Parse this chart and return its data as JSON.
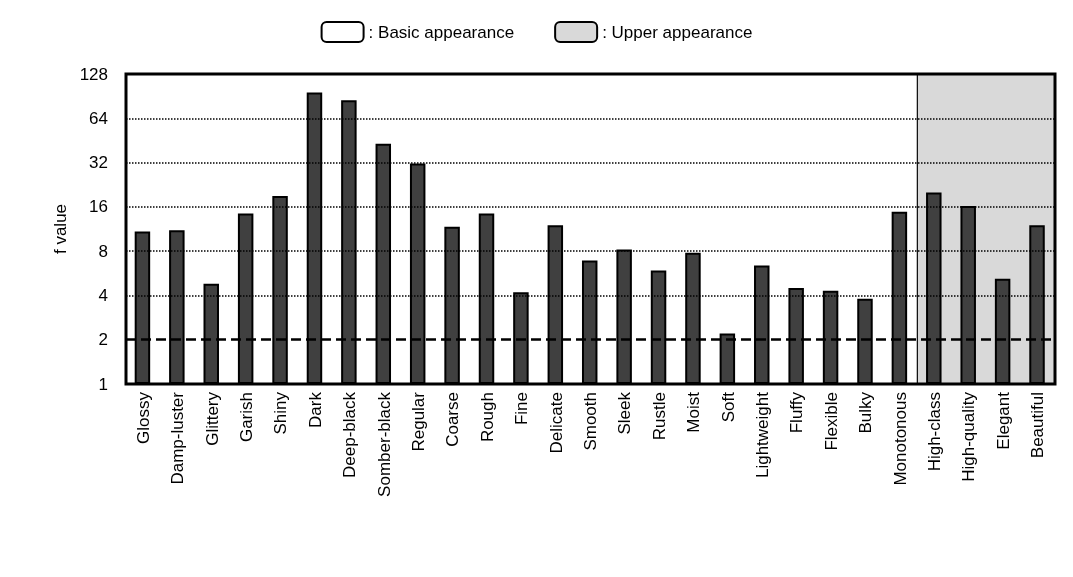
{
  "chart_data": {
    "type": "bar",
    "ylabel": "f value",
    "categories": [
      "Glossy",
      "Damp-luster",
      "Glittery",
      "Garish",
      "Shiny",
      "Dark",
      "Deep-black",
      "Somber-black",
      "Regular",
      "Coarse",
      "Rough",
      "Fine",
      "Delicate",
      "Smooth",
      "Sleek",
      "Rustle",
      "Moist",
      "Soft",
      "Lightweight",
      "Fluffy",
      "Flexible",
      "Bulky",
      "Monotonous",
      "High-class",
      "High-quality",
      "Elegant",
      "Beautiful"
    ],
    "values": [
      10.9,
      11.1,
      4.8,
      14.4,
      19,
      96,
      85,
      43,
      31.6,
      11.7,
      14.4,
      4.2,
      12,
      6.9,
      8.2,
      5.9,
      7.8,
      2.2,
      6.4,
      4.5,
      4.3,
      3.8,
      14.8,
      20,
      16.2,
      5.2,
      12
    ],
    "color": "#404040",
    "log": "y",
    "ylim": [
      1,
      128
    ],
    "yticks": [
      1,
      2,
      4,
      8,
      16,
      32,
      64,
      128
    ],
    "grid": "y",
    "legend": "top",
    "ref_lines": [
      {
        "axis": "y",
        "value": 2,
        "line_style": "dashed",
        "color": "#000000"
      }
    ],
    "bands": [
      {
        "axis": "x",
        "from": "Glossy",
        "to": "Monotonous",
        "label": ": Basic appearance",
        "color": "#ffffff"
      },
      {
        "axis": "x",
        "from": "High-class",
        "to": "Beautiful",
        "label": ": Upper appearance",
        "color": "#d9d9d9"
      }
    ]
  }
}
